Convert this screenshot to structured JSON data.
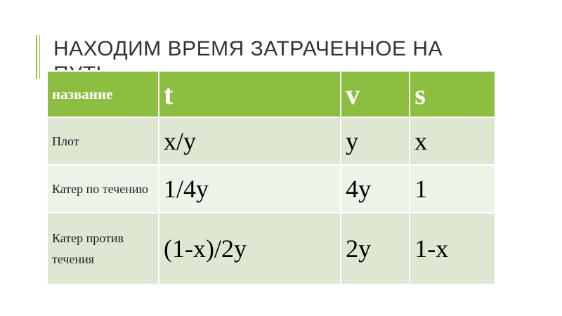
{
  "header": {
    "title": "НАХОДИМ ВРЕМЯ ЗАТРАЧЕННОЕ НА ПУТЬ"
  },
  "table": {
    "columns": [
      "название",
      "t",
      "v",
      "s"
    ],
    "rows": [
      [
        "Плот",
        "x/y",
        "y",
        "x"
      ],
      [
        "Катер по течению",
        "1/4y",
        "4y",
        "1"
      ],
      [
        "Катер против течения",
        "(1-x)/2y",
        "2y",
        "1-x"
      ]
    ]
  }
}
